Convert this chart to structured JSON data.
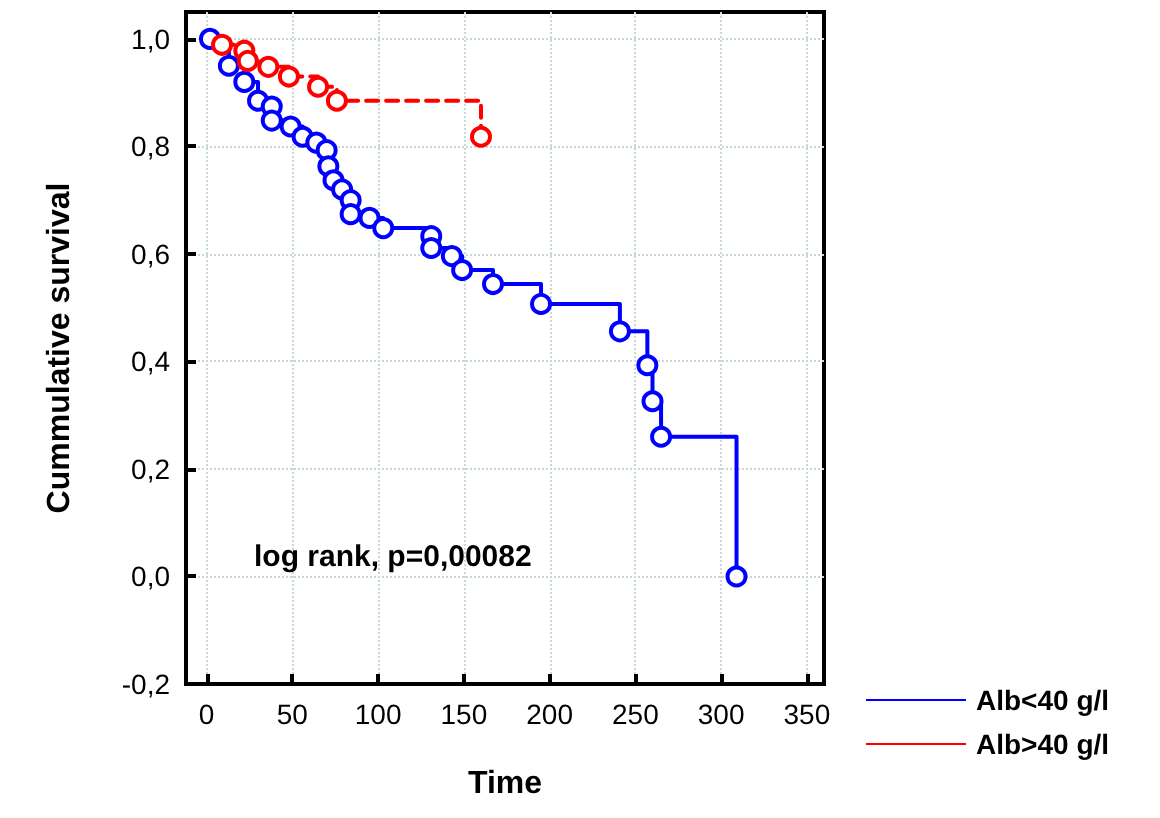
{
  "chart_data": {
    "type": "step",
    "xlabel": "Time",
    "ylabel": "Cummulative survival",
    "annotations": [
      "log rank, p=0,00082"
    ],
    "xlim": [
      -12,
      360
    ],
    "xticks": [
      0,
      50,
      100,
      150,
      200,
      250,
      300,
      350
    ],
    "ylim": [
      -0.2,
      1.05
    ],
    "yticks": [
      {
        "value": -0.2,
        "label": "-0,2"
      },
      {
        "value": 0,
        "label": "0,0"
      },
      {
        "value": 0.2,
        "label": "0,2"
      },
      {
        "value": 0.4,
        "label": "0,4"
      },
      {
        "value": 0.6,
        "label": "0,6"
      },
      {
        "value": 0.8,
        "label": "0,8"
      },
      {
        "value": 1,
        "label": "1,0"
      }
    ],
    "grid": true,
    "legend": "bottom right",
    "marker": "circle",
    "series": [
      {
        "name": "Alb<40 g/l",
        "color": "#0000ff",
        "line_style": "solid",
        "x": [
          2,
          13,
          22,
          30,
          38,
          38,
          49,
          56,
          64,
          70,
          71,
          74,
          79,
          84,
          84,
          95,
          103,
          131,
          131,
          143,
          149,
          167,
          195,
          241,
          257,
          260,
          265,
          309
        ],
        "values": [
          1.0,
          0.95,
          0.92,
          0.885,
          0.874,
          0.848,
          0.837,
          0.818,
          0.807,
          0.793,
          0.763,
          0.737,
          0.72,
          0.7,
          0.674,
          0.667,
          0.648,
          0.633,
          0.611,
          0.596,
          0.57,
          0.544,
          0.507,
          0.456,
          0.393,
          0.326,
          0.26,
          0.0
        ]
      },
      {
        "name": "Alb>40 g/l",
        "color": "#ff0000",
        "line_style": "dashed",
        "x": [
          9,
          22,
          24,
          36,
          48,
          65,
          76,
          160
        ],
        "values": [
          0.989,
          0.978,
          0.959,
          0.948,
          0.93,
          0.911,
          0.885,
          0.818
        ]
      }
    ]
  }
}
